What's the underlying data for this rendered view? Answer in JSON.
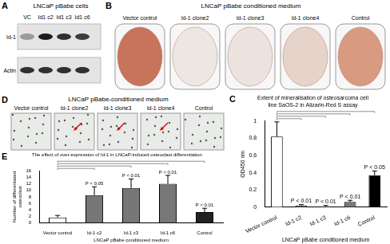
{
  "panels": {
    "A": {
      "letter": "A",
      "title": "LNCaP pBabe cells",
      "lanes": [
        "VC",
        "Id1 c2",
        "Id1 c3",
        "Id1 c6"
      ],
      "rows": [
        "Id-1",
        "Actin"
      ]
    },
    "B": {
      "letter": "B",
      "title": "LNCaP pBabe conditioned medium",
      "wells": [
        "Vector control",
        "Id-1 clone2",
        "Id-1 clone3",
        "Id-1 clone4",
        "Control"
      ]
    },
    "D": {
      "letter": "D",
      "title": "LNCaP pBabe-conditioned medium",
      "images": [
        "Vector control",
        "Id-1 clone2",
        "Id-1 clone3",
        "Id-1 clone4",
        "Control"
      ]
    }
  },
  "chart_data": [
    {
      "panel": "C",
      "type": "bar",
      "title": "Extent of mineralisation of osteosarcoma cell line SaOS-2 in Alizarin-Red S assay",
      "categories": [
        "Vector control",
        "Id-1 c2",
        "Id-1 c3",
        "Id-1 c6",
        "Control"
      ],
      "values": [
        0.82,
        0.02,
        0.01,
        0.06,
        0.37
      ],
      "errors": [
        0.17,
        0.01,
        0.01,
        0.02,
        0.05
      ],
      "colors": [
        "#ffffff",
        "#777777",
        "#777777",
        "#777777",
        "#000000"
      ],
      "annotations": [
        null,
        "P < 0.01",
        "P < 0.01",
        "P < 0.01",
        "P < 0.05"
      ],
      "x_label": "LNCaP pBabe conditioned medium",
      "y_label": "OD450 nm",
      "ylim": [
        0,
        1
      ],
      "yticks": [
        0,
        0.2,
        0.4,
        0.6,
        0.8,
        1
      ],
      "grid": false
    },
    {
      "panel": "E",
      "type": "bar",
      "title": "The effect of over-expression of Id-1 in LNCaP-induced osteoclast differentiation",
      "categories": [
        "Vector control",
        "Id-1 c2",
        "Id-1 c3",
        "Id-1 c6",
        "Control"
      ],
      "values": [
        1.7,
        8.5,
        10.7,
        12,
        3.3
      ],
      "errors": [
        0.6,
        2.6,
        2.8,
        2.6,
        1.2
      ],
      "colors": [
        "#ffffff",
        "#777777",
        "#777777",
        "#777777",
        "#222222"
      ],
      "annotations": [
        null,
        "P < 0.05",
        "P < 0.01",
        "P < 0.01",
        "P < 0.01"
      ],
      "x_label": "LNCaP pBabe conditioned medium",
      "y_label": "Number of differentiated osteoclast",
      "ylim": [
        0,
        16
      ],
      "yticks": [
        0,
        2,
        4,
        6,
        8,
        10,
        12,
        14,
        16
      ],
      "grid": false
    }
  ]
}
